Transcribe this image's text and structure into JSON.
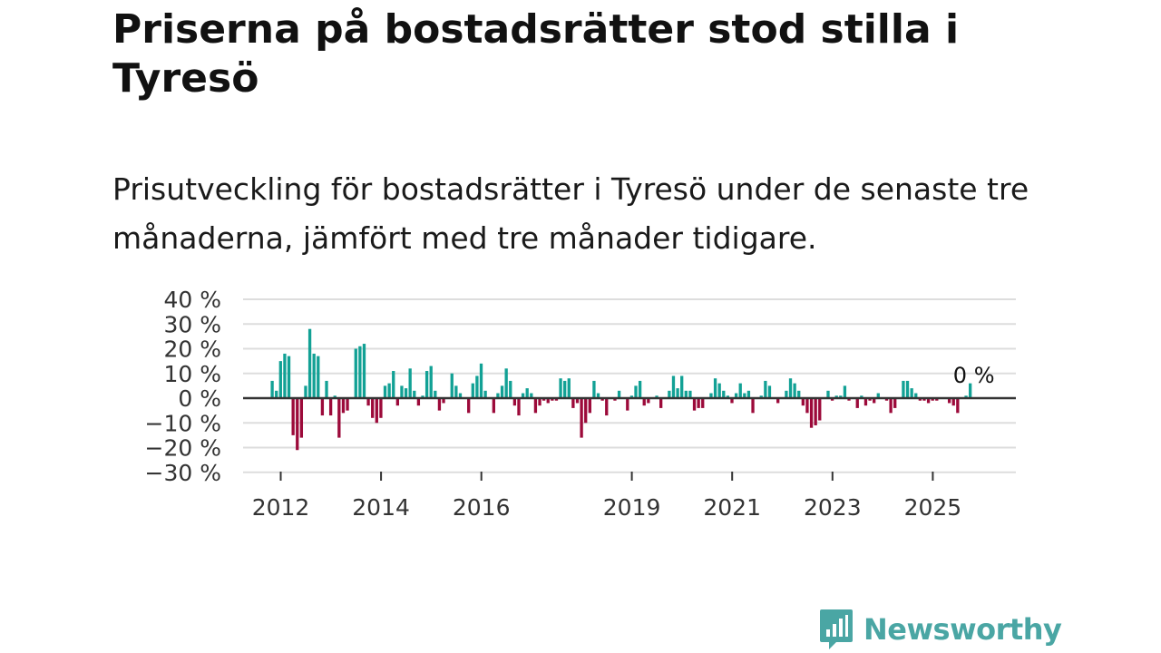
{
  "title": "Priserna på bostadsrätter stod stilla i Tyresö",
  "subtitle": "Prisutveckling för bostadsrätter i Tyresö under de senaste tre månaderna, jämfört med tre månader tidigare.",
  "brand": {
    "name": "Newsworthy",
    "color": "#4aa6a4",
    "icon": "newsworthy-logo-icon"
  },
  "colors": {
    "positive": "#12a195",
    "negative": "#9c0a3a",
    "grid": "#dddddd",
    "zero": "#333333"
  },
  "chart_data": {
    "type": "bar",
    "title": "",
    "xlabel": "",
    "ylabel": "",
    "ylim": [
      -30,
      40
    ],
    "y_ticks": [
      40,
      30,
      20,
      10,
      0,
      -10,
      -20,
      -30
    ],
    "y_tick_labels": [
      "40 %",
      "30 %",
      "20 %",
      "10 %",
      "0 %",
      "−10 %",
      "−20 %",
      "−30 %"
    ],
    "x_ticks": [
      2012,
      2014,
      2016,
      2019,
      2021,
      2023,
      2025
    ],
    "x_tick_labels": [
      "2012",
      "2014",
      "2016",
      "2019",
      "2021",
      "2023",
      "2025"
    ],
    "x_start": 2011.83,
    "x_step_years": 0.08333,
    "annotation": "0 %",
    "series": [
      {
        "name": "Prisutveckling",
        "values": [
          7,
          3,
          15,
          18,
          17,
          -15,
          -21,
          -16,
          5,
          28,
          18,
          17,
          -7,
          7,
          -7,
          1,
          -16,
          -6,
          -5,
          0,
          20,
          21,
          22,
          -3,
          -8,
          -10,
          -8,
          5,
          6,
          11,
          -3,
          5,
          4,
          12,
          3,
          -3,
          1,
          11,
          13,
          3,
          -5,
          -2,
          0,
          10,
          5,
          2,
          0,
          -6,
          6,
          9,
          14,
          3,
          0,
          -6,
          2,
          5,
          12,
          7,
          -3,
          -7,
          2,
          4,
          2,
          -6,
          -3,
          -1,
          -2,
          -1,
          -1,
          8,
          7,
          8,
          -4,
          -2,
          -16,
          -10,
          -6,
          7,
          2,
          -1,
          -7,
          0,
          -1,
          3,
          0,
          -5,
          1,
          5,
          7,
          -3,
          -2,
          0,
          1,
          -4,
          0,
          3,
          9,
          4,
          9,
          3,
          3,
          -5,
          -4,
          -4,
          0,
          2,
          8,
          6,
          3,
          1,
          -2,
          2,
          6,
          2,
          3,
          -6,
          0,
          1,
          7,
          5,
          0,
          -2,
          0,
          3,
          8,
          6,
          3,
          -3,
          -6,
          -12,
          -11,
          -9,
          0,
          3,
          -1,
          1,
          1,
          5,
          -1,
          0,
          -4,
          1,
          -3,
          -1,
          -2,
          2,
          0,
          -1,
          -6,
          -4,
          0,
          7,
          7,
          4,
          2,
          -1,
          -1,
          -2,
          -1,
          -1,
          0,
          0,
          -2,
          -3,
          -6,
          0,
          1,
          6
        ]
      }
    ]
  }
}
